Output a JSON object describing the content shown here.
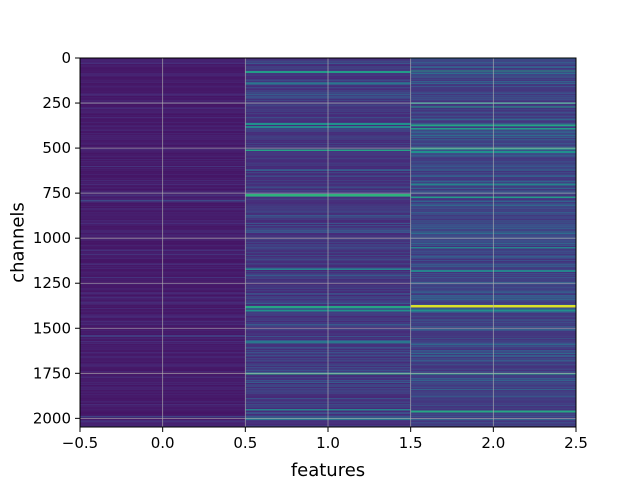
{
  "chart_data": {
    "type": "heatmap",
    "title": "",
    "xlabel": "features",
    "ylabel": "channels",
    "xlim": [
      -0.5,
      2.5
    ],
    "ylim": [
      2048,
      0
    ],
    "y_inverted": true,
    "grid": true,
    "colormap": "viridis",
    "n_columns": 3,
    "n_channels": 2048,
    "x_ticks": [
      -0.5,
      0.0,
      0.5,
      1.0,
      1.5,
      2.0,
      2.5
    ],
    "x_tick_labels": [
      "−0.5",
      "0.0",
      "0.5",
      "1.0",
      "1.5",
      "2.0",
      "2.5"
    ],
    "y_ticks": [
      0,
      250,
      500,
      750,
      1000,
      1250,
      1500,
      1750,
      2000
    ],
    "y_tick_labels": [
      "0",
      "250",
      "500",
      "750",
      "1000",
      "1250",
      "1500",
      "1750",
      "2000"
    ],
    "columns": [
      {
        "feature": 0,
        "base_level": 0.06,
        "variation": 0.05,
        "bright_rows": [
          [
            790,
            0.22
          ],
          [
            1540,
            0.18
          ],
          [
            1990,
            0.2
          ]
        ]
      },
      {
        "feature": 1,
        "base_level": 0.12,
        "variation": 0.1,
        "bright_rows": [
          [
            75,
            0.55
          ],
          [
            140,
            0.4
          ],
          [
            365,
            0.5
          ],
          [
            380,
            0.45
          ],
          [
            510,
            0.58
          ],
          [
            760,
            0.65
          ],
          [
            1170,
            0.45
          ],
          [
            1380,
            0.6
          ],
          [
            1400,
            0.5
          ],
          [
            1575,
            0.4
          ],
          [
            1750,
            0.62
          ],
          [
            1950,
            0.45
          ],
          [
            2000,
            0.4
          ]
        ]
      },
      {
        "feature": 2,
        "base_level": 0.15,
        "variation": 0.12,
        "bright_rows": [
          [
            70,
            0.55
          ],
          [
            250,
            0.5
          ],
          [
            270,
            0.55
          ],
          [
            370,
            0.6
          ],
          [
            390,
            0.55
          ],
          [
            500,
            0.6
          ],
          [
            520,
            0.5
          ],
          [
            700,
            0.45
          ],
          [
            770,
            0.55
          ],
          [
            1050,
            0.45
          ],
          [
            1180,
            0.45
          ],
          [
            1375,
            0.95
          ],
          [
            1400,
            0.5
          ],
          [
            1750,
            0.55
          ],
          [
            1960,
            0.6
          ]
        ]
      }
    ],
    "colors": {
      "spine": "#000000",
      "grid": "#b0b0b0"
    }
  }
}
